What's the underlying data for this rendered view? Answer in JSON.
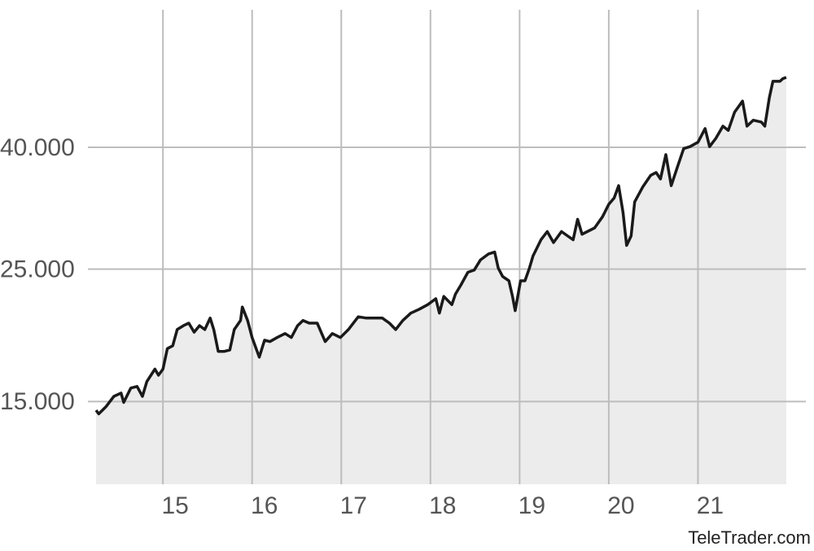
{
  "chart_data": {
    "type": "area-line",
    "source": "TeleTrader.com",
    "color": "#1a1a1a",
    "fill": "#ececec",
    "grid": true,
    "log_scale_y": true,
    "xlim": [
      14.25,
      22.0
    ],
    "xticks": [
      15,
      16,
      17,
      18,
      19,
      20,
      21
    ],
    "ylim": [
      10900,
      68000
    ],
    "yticks": [
      {
        "value": 15000,
        "label": "15.000"
      },
      {
        "value": 25000,
        "label": "25.000"
      },
      {
        "value": 40000,
        "label": "40.000"
      }
    ],
    "x": [
      14.25,
      14.28,
      14.36,
      14.45,
      14.53,
      14.56,
      14.64,
      14.71,
      14.77,
      14.82,
      14.91,
      14.95,
      15.0,
      15.05,
      15.11,
      15.16,
      15.23,
      15.29,
      15.35,
      15.41,
      15.47,
      15.53,
      15.57,
      15.62,
      15.69,
      15.75,
      15.8,
      15.87,
      15.89,
      15.95,
      16.0,
      16.08,
      16.14,
      16.2,
      16.28,
      16.37,
      16.44,
      16.51,
      16.57,
      16.64,
      16.73,
      16.82,
      16.9,
      16.99,
      17.08,
      17.19,
      17.28,
      17.37,
      17.46,
      17.54,
      17.61,
      17.69,
      17.78,
      17.87,
      17.97,
      18.06,
      18.1,
      18.15,
      18.24,
      18.28,
      18.34,
      18.42,
      18.49,
      18.56,
      18.65,
      18.72,
      18.76,
      18.81,
      18.88,
      18.92,
      18.95,
      19.01,
      19.06,
      19.11,
      19.15,
      19.24,
      19.31,
      19.38,
      19.47,
      19.54,
      19.6,
      19.65,
      19.7,
      19.76,
      19.84,
      19.93,
      20.0,
      20.06,
      20.11,
      20.16,
      20.2,
      20.25,
      20.29,
      20.38,
      20.47,
      20.53,
      20.58,
      20.64,
      20.7,
      20.77,
      20.84,
      20.91,
      21.0,
      21.08,
      21.13,
      21.2,
      21.28,
      21.34,
      21.41,
      21.5,
      21.55,
      21.62,
      21.71,
      21.75,
      21.8,
      21.84,
      21.92,
      21.95,
      21.99
    ],
    "values": [
      14500,
      14300,
      14700,
      15300,
      15500,
      14950,
      15800,
      15900,
      15300,
      16200,
      17000,
      16600,
      17000,
      18400,
      18600,
      19800,
      20100,
      20300,
      19600,
      20100,
      19800,
      20700,
      19800,
      18200,
      18200,
      18300,
      19800,
      20500,
      21600,
      20500,
      19200,
      17800,
      19000,
      18900,
      19200,
      19500,
      19200,
      20100,
      20500,
      20300,
      20300,
      18900,
      19500,
      19200,
      19800,
      20800,
      20700,
      20700,
      20700,
      20300,
      19800,
      20500,
      21100,
      21400,
      21800,
      22300,
      21100,
      22500,
      21800,
      22700,
      23500,
      24700,
      24900,
      25900,
      26500,
      26700,
      25100,
      24300,
      23900,
      22500,
      21300,
      23900,
      23900,
      25100,
      26300,
      28000,
      28900,
      27700,
      28900,
      28400,
      28000,
      30300,
      28600,
      28900,
      29300,
      30600,
      32100,
      32900,
      34500,
      31100,
      27400,
      28400,
      32400,
      34300,
      35900,
      36300,
      35400,
      38900,
      34500,
      37100,
      39800,
      40100,
      40800,
      43000,
      40100,
      41400,
      43400,
      42700,
      45800,
      47800,
      43400,
      44400,
      44100,
      43400,
      48400,
      51600,
      51600,
      52100,
      52400
    ]
  }
}
